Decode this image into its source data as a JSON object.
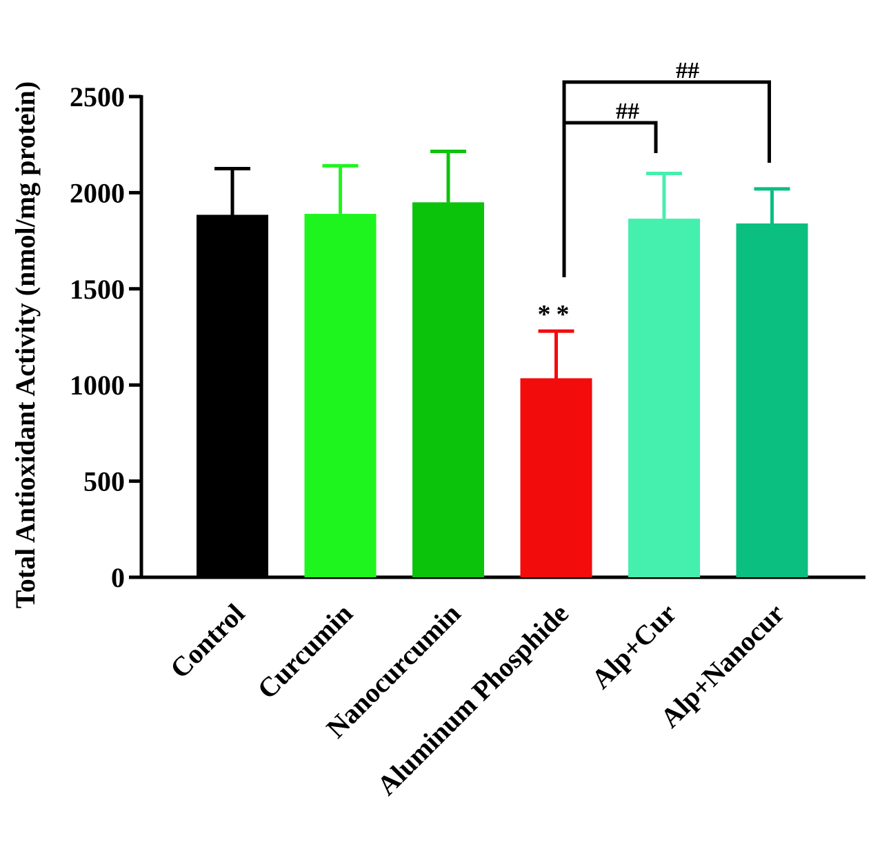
{
  "chart_data": {
    "type": "bar",
    "title": "",
    "xlabel": "",
    "ylabel": "Total Antioxidant Activity (nmol/mg protein)",
    "ylim": [
      0,
      2500
    ],
    "yticks": [
      0,
      500,
      1000,
      1500,
      2000,
      2500
    ],
    "categories": [
      "Control",
      "Curcumin",
      "Nanocurcumin",
      "Aluminum Phosphide",
      "Alp+Cur",
      "Alp+Nanocur"
    ],
    "values": [
      1885,
      1890,
      1950,
      1035,
      1865,
      1840
    ],
    "errors": [
      240,
      250,
      265,
      245,
      235,
      180
    ],
    "colors": [
      "#000000",
      "#1ef51e",
      "#0bc30b",
      "#f20c0c",
      "#45efad",
      "#0abf7f"
    ],
    "grid": false,
    "annotations": [
      {
        "category": "Aluminum Phosphide",
        "text": "**"
      }
    ],
    "significance": [
      {
        "from": "Aluminum Phosphide",
        "to": "Alp+Cur",
        "label": "##"
      },
      {
        "from": "Aluminum Phosphide",
        "to": "Alp+Nanocur",
        "label": "##"
      }
    ]
  }
}
